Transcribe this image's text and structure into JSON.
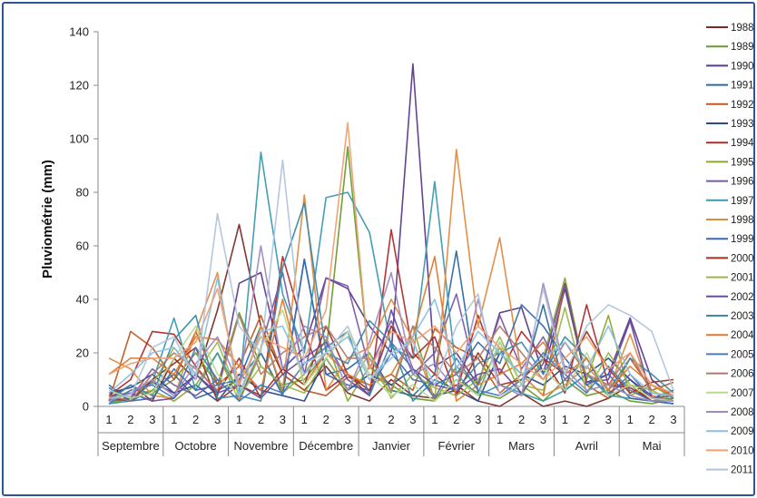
{
  "chart_data": {
    "type": "line",
    "title": "",
    "xlabel": "",
    "ylabel": "Pluviométrie (mm)",
    "ylim": [
      0,
      140
    ],
    "yticks": [
      0,
      20,
      40,
      60,
      80,
      100,
      120,
      140
    ],
    "grid": false,
    "legend_position": "right",
    "months": [
      "Septembre",
      "Octobre",
      "Novembre",
      "Décembre",
      "Janvier",
      "Février",
      "Mars",
      "Avril",
      "Mai"
    ],
    "decades": [
      "1",
      "2",
      "3"
    ],
    "series": [
      {
        "name": "1988",
        "color": "#7b2a2a",
        "values": [
          3,
          8,
          2,
          18,
          10,
          36,
          68,
          30,
          12,
          6,
          15,
          5,
          2,
          10,
          4,
          3,
          8,
          2,
          0,
          5,
          0,
          2,
          0,
          3,
          8,
          2,
          1
        ]
      },
      {
        "name": "1989",
        "color": "#6a9a2c",
        "values": [
          1,
          3,
          5,
          10,
          20,
          8,
          35,
          15,
          8,
          10,
          20,
          97,
          15,
          8,
          3,
          2,
          10,
          5,
          3,
          8,
          2,
          10,
          4,
          6,
          2,
          1,
          3
        ]
      },
      {
        "name": "1990",
        "color": "#5a3a8a",
        "values": [
          2,
          5,
          9,
          5,
          12,
          4,
          46,
          50,
          14,
          22,
          48,
          44,
          30,
          20,
          128,
          15,
          20,
          8,
          35,
          37,
          12,
          44,
          9,
          12,
          33,
          10,
          3
        ]
      },
      {
        "name": "1991",
        "color": "#2c6aa0",
        "values": [
          8,
          2,
          6,
          12,
          3,
          6,
          10,
          30,
          5,
          55,
          12,
          14,
          20,
          6,
          4,
          12,
          58,
          5,
          24,
          8,
          38,
          6,
          12,
          5,
          10,
          4,
          2
        ]
      },
      {
        "name": "1992",
        "color": "#c05a20",
        "values": [
          2,
          28,
          22,
          10,
          28,
          8,
          15,
          34,
          12,
          6,
          4,
          11,
          8,
          12,
          6,
          29,
          22,
          18,
          5,
          12,
          4,
          46,
          8,
          3,
          18,
          6,
          9
        ]
      },
      {
        "name": "1993",
        "color": "#2a4a8a",
        "values": [
          5,
          7,
          12,
          5,
          8,
          2,
          12,
          6,
          4,
          2,
          18,
          6,
          12,
          8,
          14,
          4,
          6,
          2,
          20,
          12,
          8,
          15,
          12,
          18,
          10,
          3,
          6
        ]
      },
      {
        "name": "1994",
        "color": "#b02a2a",
        "values": [
          4,
          10,
          28,
          27,
          15,
          5,
          18,
          3,
          56,
          28,
          6,
          12,
          4,
          66,
          20,
          12,
          5,
          34,
          12,
          28,
          18,
          5,
          38,
          8,
          7,
          2,
          3
        ]
      },
      {
        "name": "1995",
        "color": "#8aa830",
        "values": [
          1,
          4,
          6,
          2,
          8,
          20,
          2,
          20,
          5,
          12,
          25,
          2,
          15,
          5,
          30,
          2,
          15,
          8,
          22,
          4,
          18,
          48,
          10,
          34,
          4,
          8,
          3
        ]
      },
      {
        "name": "1996",
        "color": "#7a5aa8",
        "values": [
          2,
          3,
          14,
          8,
          4,
          10,
          2,
          22,
          50,
          12,
          48,
          45,
          14,
          32,
          12,
          20,
          42,
          8,
          34,
          14,
          26,
          10,
          18,
          4,
          12,
          3,
          2
        ]
      },
      {
        "name": "1997",
        "color": "#3a9ab0",
        "values": [
          1,
          2,
          9,
          33,
          6,
          20,
          5,
          95,
          42,
          20,
          78,
          80,
          65,
          22,
          18,
          84,
          12,
          4,
          8,
          5,
          2,
          6,
          12,
          4,
          3,
          2,
          1
        ]
      },
      {
        "name": "1998",
        "color": "#e08a40",
        "values": [
          18,
          14,
          4,
          3,
          28,
          50,
          2,
          30,
          6,
          79,
          6,
          18,
          22,
          40,
          25,
          2,
          96,
          30,
          63,
          12,
          4,
          8,
          15,
          6,
          27,
          4,
          2
        ]
      },
      {
        "name": "1999",
        "color": "#3a6ab0",
        "values": [
          7,
          2,
          3,
          14,
          6,
          8,
          10,
          20,
          4,
          55,
          12,
          8,
          6,
          20,
          10,
          8,
          12,
          24,
          16,
          38,
          30,
          18,
          8,
          12,
          3,
          2,
          1
        ]
      },
      {
        "name": "2000",
        "color": "#a03020",
        "values": [
          3,
          2,
          10,
          16,
          22,
          2,
          8,
          4,
          14,
          8,
          30,
          12,
          6,
          30,
          18,
          26,
          4,
          20,
          8,
          10,
          18,
          12,
          28,
          14,
          5,
          9,
          10
        ]
      },
      {
        "name": "2001",
        "color": "#9ab84a",
        "values": [
          2,
          6,
          8,
          22,
          12,
          24,
          4,
          15,
          8,
          5,
          18,
          6,
          20,
          3,
          12,
          7,
          4,
          10,
          26,
          8,
          6,
          37,
          5,
          20,
          8,
          6,
          2
        ]
      },
      {
        "name": "2002",
        "color": "#6a4aa0",
        "values": [
          4,
          5,
          2,
          3,
          12,
          5,
          8,
          3,
          12,
          18,
          24,
          10,
          4,
          36,
          14,
          8,
          6,
          12,
          14,
          5,
          16,
          46,
          9,
          10,
          32,
          3,
          4
        ]
      },
      {
        "name": "2003",
        "color": "#3a8aa8",
        "values": [
          2,
          8,
          4,
          25,
          34,
          3,
          4,
          2,
          52,
          76,
          20,
          16,
          32,
          24,
          2,
          10,
          6,
          16,
          20,
          24,
          12,
          26,
          18,
          6,
          18,
          12,
          5
        ]
      },
      {
        "name": "2004",
        "color": "#e07a30",
        "values": [
          12,
          18,
          18,
          12,
          26,
          25,
          15,
          6,
          40,
          8,
          20,
          12,
          8,
          12,
          26,
          56,
          2,
          8,
          12,
          16,
          24,
          12,
          18,
          6,
          15,
          8,
          4
        ]
      },
      {
        "name": "2005",
        "color": "#4a7ab8",
        "values": [
          1,
          6,
          8,
          3,
          22,
          10,
          2,
          8,
          5,
          16,
          22,
          28,
          4,
          24,
          14,
          3,
          18,
          6,
          4,
          10,
          20,
          12,
          5,
          15,
          6,
          2,
          3
        ]
      },
      {
        "name": "2006",
        "color": "#b07a70",
        "values": [
          4,
          2,
          12,
          20,
          14,
          6,
          34,
          12,
          20,
          26,
          30,
          18,
          18,
          6,
          30,
          22,
          12,
          18,
          30,
          20,
          10,
          24,
          12,
          8,
          20,
          5,
          4
        ]
      },
      {
        "name": "2007",
        "color": "#b8d890",
        "values": [
          6,
          3,
          5,
          18,
          30,
          12,
          4,
          22,
          36,
          8,
          18,
          28,
          12,
          4,
          8,
          2,
          10,
          4,
          24,
          8,
          14,
          6,
          20,
          4,
          8,
          3,
          2
        ]
      },
      {
        "name": "2008",
        "color": "#a08ac0",
        "values": [
          2,
          5,
          10,
          4,
          16,
          26,
          8,
          60,
          14,
          30,
          26,
          6,
          24,
          50,
          12,
          16,
          6,
          40,
          8,
          4,
          46,
          14,
          6,
          8,
          4,
          2,
          2
        ]
      },
      {
        "name": "2009",
        "color": "#8ac0e0",
        "values": [
          5,
          12,
          20,
          22,
          12,
          48,
          4,
          28,
          30,
          12,
          20,
          26,
          10,
          18,
          26,
          40,
          14,
          28,
          20,
          12,
          18,
          24,
          14,
          30,
          12,
          5,
          4
        ]
      },
      {
        "name": "2010",
        "color": "#f0a070",
        "values": [
          12,
          16,
          18,
          18,
          24,
          44,
          8,
          26,
          22,
          18,
          36,
          106,
          14,
          28,
          24,
          30,
          20,
          30,
          22,
          16,
          10,
          18,
          26,
          14,
          20,
          8,
          5
        ]
      },
      {
        "name": "2011",
        "color": "#b0c4dc",
        "values": [
          3,
          4,
          22,
          26,
          10,
          72,
          30,
          20,
          92,
          16,
          20,
          30,
          10,
          20,
          24,
          8,
          30,
          42,
          4,
          8,
          44,
          12,
          30,
          38,
          34,
          28,
          6
        ]
      }
    ]
  }
}
